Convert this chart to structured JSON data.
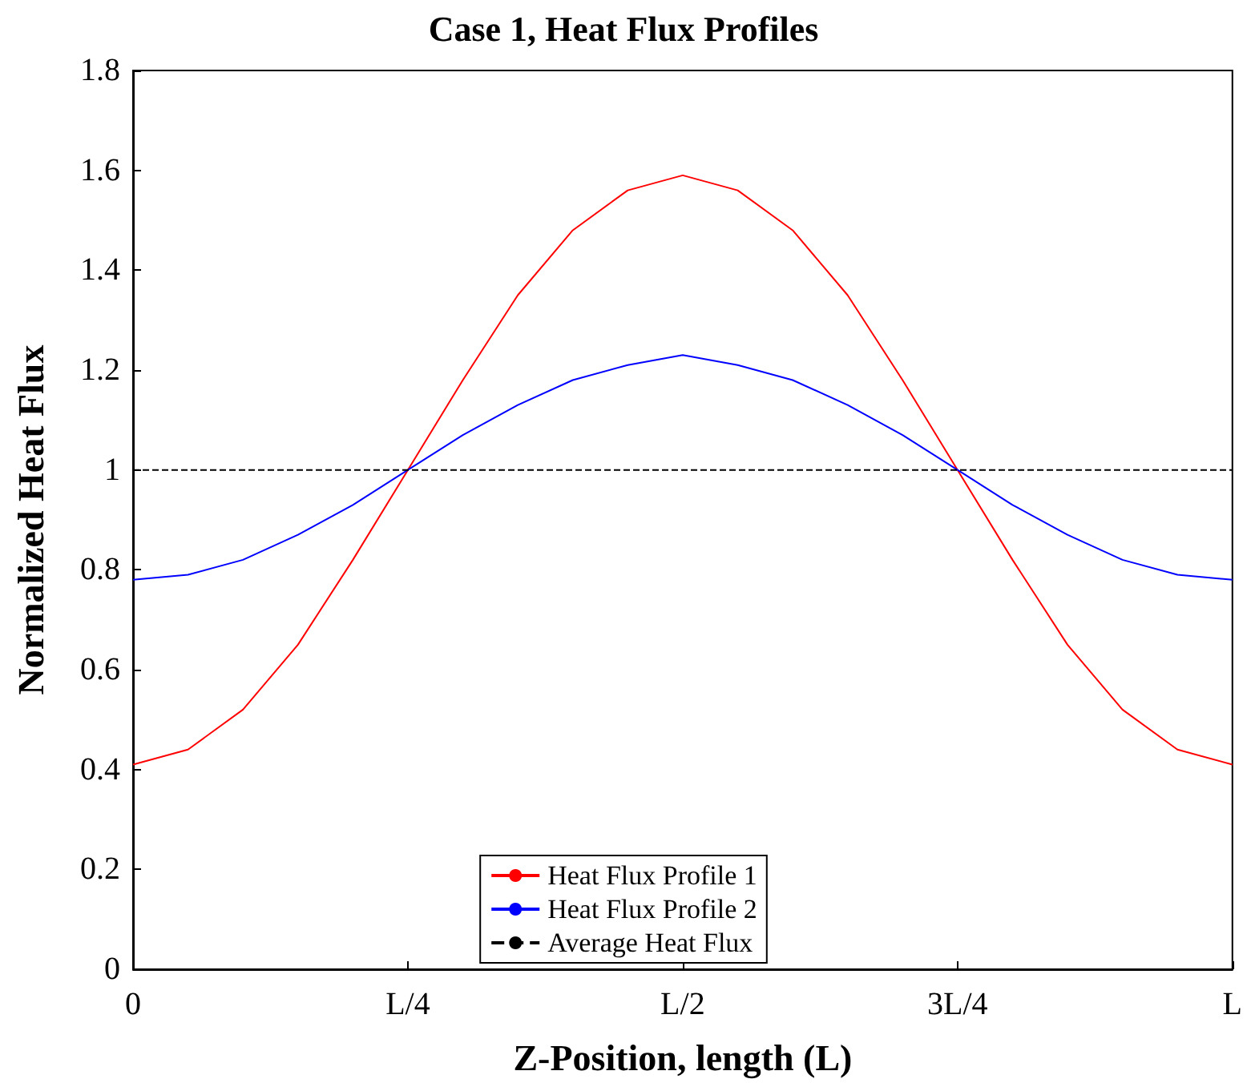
{
  "chart_data": {
    "type": "line",
    "title": "Case 1, Heat Flux Profiles",
    "xlabel": "Z-Position, length (L)",
    "ylabel": "Normalized Heat Flux",
    "categories": [
      "0",
      null,
      null,
      null,
      null,
      "L/4",
      null,
      null,
      null,
      null,
      "L/2",
      null,
      null,
      null,
      null,
      "3L/4",
      null,
      null,
      null,
      null,
      "L"
    ],
    "series": [
      {
        "name": "Heat Flux Profile 1",
        "color": "#ff0000",
        "values": [
          0.41,
          0.44,
          0.52,
          0.65,
          0.82,
          1.0,
          1.18,
          1.35,
          1.48,
          1.56,
          1.59,
          1.56,
          1.48,
          1.35,
          1.18,
          1.0,
          0.82,
          0.65,
          0.52,
          0.44,
          0.41
        ]
      },
      {
        "name": "Heat Flux Profile 2",
        "color": "#0000ff",
        "values": [
          0.78,
          0.79,
          0.82,
          0.87,
          0.93,
          1.0,
          1.07,
          1.13,
          1.18,
          1.21,
          1.23,
          1.21,
          1.18,
          1.13,
          1.07,
          1.0,
          0.93,
          0.87,
          0.82,
          0.79,
          0.78
        ]
      },
      {
        "name": "Average Heat Flux",
        "color": "#000000",
        "line_style": "dashed",
        "values": [
          1,
          1,
          1,
          1,
          1,
          1,
          1,
          1,
          1,
          1,
          1,
          1,
          1,
          1,
          1,
          1,
          1,
          1,
          1,
          1,
          1
        ]
      }
    ],
    "ylim": [
      0,
      1.8
    ],
    "yticks": [
      0,
      0.2,
      0.4,
      0.6,
      0.8,
      1,
      1.2,
      1.4,
      1.6,
      1.8
    ],
    "grid": false,
    "legend": "bottom",
    "marker": "none",
    "line_style": "solid"
  }
}
